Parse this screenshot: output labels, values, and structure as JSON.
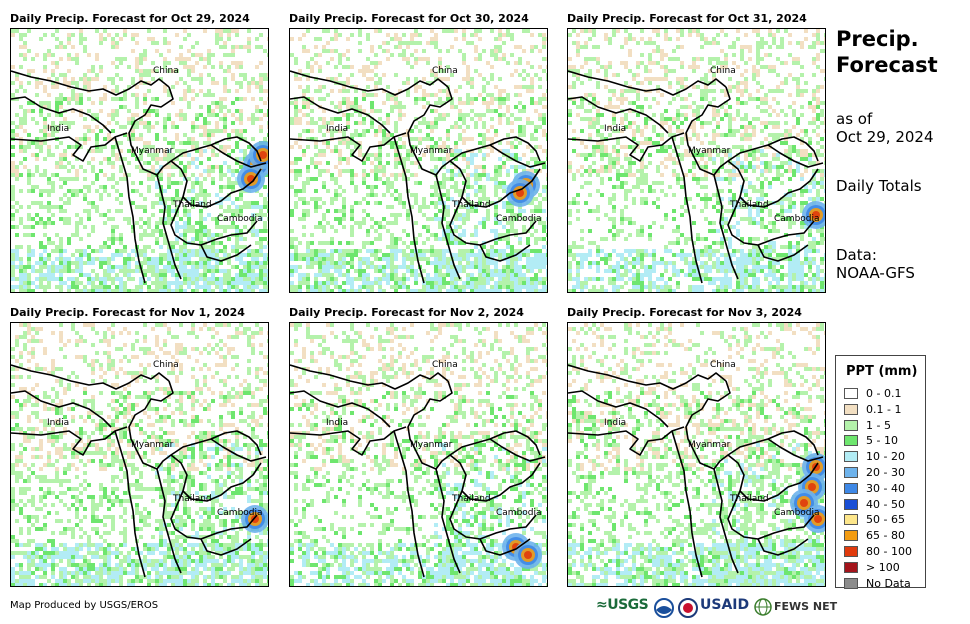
{
  "side_panel": {
    "title_line1": "Precip.",
    "title_line2": "Forecast",
    "asof_line1": "as of",
    "asof_line2": "Oct 29, 2024",
    "totals": "Daily Totals",
    "data_line1": "Data:",
    "data_line2": "NOAA-GFS"
  },
  "panels": [
    {
      "title": "Daily Precip. Forecast for Oct 29, 2024"
    },
    {
      "title": "Daily Precip. Forecast for Oct 30, 2024"
    },
    {
      "title": "Daily Precip. Forecast for Oct 31, 2024"
    },
    {
      "title": "Daily Precip. Forecast for Nov 1, 2024"
    },
    {
      "title": "Daily Precip. Forecast for Nov 2, 2024"
    },
    {
      "title": "Daily Precip. Forecast for Nov 3, 2024"
    }
  ],
  "map_labels": {
    "china": "China",
    "india": "India",
    "myanmar": "Myanmar",
    "thailand": "Thailand",
    "cambodia": "Cambodia"
  },
  "legend": {
    "title": "PPT (mm)",
    "items": [
      {
        "label": "0 - 0.1",
        "color": "#ffffff"
      },
      {
        "label": "0.1 - 1",
        "color": "#f2dfc2"
      },
      {
        "label": "1 - 5",
        "color": "#b4f2ab"
      },
      {
        "label": "5 - 10",
        "color": "#6ee66e"
      },
      {
        "label": "10 - 20",
        "color": "#b2ecf5"
      },
      {
        "label": "20 - 30",
        "color": "#6eb3ec"
      },
      {
        "label": "30 - 40",
        "color": "#3e88e6"
      },
      {
        "label": "40 - 50",
        "color": "#1a4fd6"
      },
      {
        "label": "50 - 65",
        "color": "#fde68a"
      },
      {
        "label": "65 - 80",
        "color": "#f39c12"
      },
      {
        "label": "80 - 100",
        "color": "#e03a0c"
      },
      {
        "label": "> 100",
        "color": "#a3141b"
      },
      {
        "label": "No Data",
        "color": "#8c8c8c"
      }
    ]
  },
  "footer": {
    "credit": "Map Produced by USGS/EROS",
    "logo_usgs": "≈USGS",
    "logo_usaid": "USAID",
    "logo_fews": "FEWS NET"
  }
}
